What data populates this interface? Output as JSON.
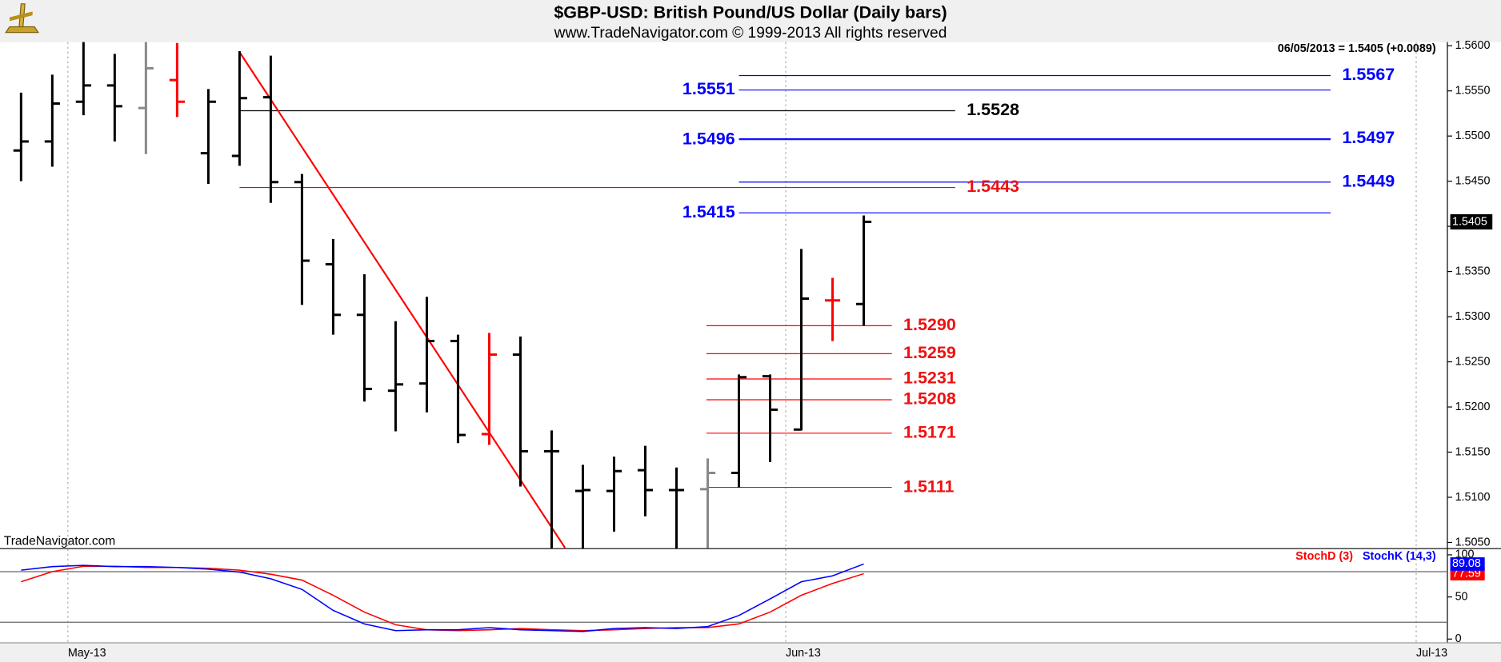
{
  "chart_data": [
    {
      "type": "ohlc",
      "title": "$GBP-USD:  British Pound/US Dollar  (Daily bars)",
      "subtitle": "www.TradeNavigator.com © 1999-2013 All rights reserved",
      "annotation": "06/05/2013 = 1.5405 (+0.0089)",
      "source_label": "TradeNavigator.com",
      "open": [
        1.5484,
        1.5494,
        1.5538,
        1.5556,
        1.5531,
        1.5562,
        1.5481,
        1.5478,
        1.5543,
        1.5449,
        1.5358,
        1.5302,
        1.5218,
        1.5226,
        1.5273,
        1.517,
        1.5258,
        1.5151,
        1.5107,
        1.5107,
        1.513,
        1.5108,
        1.5109,
        1.5127,
        1.5234,
        1.5175,
        1.5318,
        1.5314
      ],
      "high": [
        1.5548,
        1.5568,
        1.5607,
        1.5591,
        1.5607,
        1.5603,
        1.5552,
        1.5594,
        1.5589,
        1.5458,
        1.5386,
        1.5347,
        1.5295,
        1.5322,
        1.528,
        1.5282,
        1.5278,
        1.5174,
        1.5136,
        1.5145,
        1.5157,
        1.5133,
        1.5143,
        1.5236,
        1.5236,
        1.5375,
        1.5343,
        1.5412
      ],
      "low": [
        1.545,
        1.5466,
        1.5523,
        1.5494,
        1.548,
        1.5521,
        1.5447,
        1.5467,
        1.5426,
        1.5313,
        1.528,
        1.5206,
        1.5173,
        1.5194,
        1.516,
        1.5158,
        1.5112,
        1.504,
        1.504,
        1.5062,
        1.5079,
        1.504,
        1.504,
        1.5111,
        1.5139,
        1.5174,
        1.5273,
        1.529
      ],
      "close": [
        1.5494,
        1.5536,
        1.5556,
        1.5533,
        1.5575,
        1.5538,
        1.5538,
        1.5542,
        1.5449,
        1.5362,
        1.5302,
        1.522,
        1.5225,
        1.5273,
        1.5169,
        1.5258,
        1.5151,
        1.5151,
        1.5108,
        1.5129,
        1.5108,
        1.5108,
        1.5127,
        1.5233,
        1.5197,
        1.532,
        1.5318,
        1.5405
      ],
      "colors": [
        "#000000",
        "#000000",
        "#000000",
        "#000000",
        "#888888",
        "#ff0000",
        "#000000",
        "#000000",
        "#000000",
        "#000000",
        "#000000",
        "#000000",
        "#000000",
        "#000000",
        "#000000",
        "#ff0000",
        "#000000",
        "#000000",
        "#000000",
        "#000000",
        "#000000",
        "#000000",
        "#888888",
        "#000000",
        "#000000",
        "#000000",
        "#ff0000",
        "#000000"
      ],
      "ylim": [
        1.50437,
        1.5604
      ],
      "yticks": [
        {
          "value": 1.505,
          "label": "1.5050"
        },
        {
          "value": 1.51,
          "label": "1.5100"
        },
        {
          "value": 1.515,
          "label": "1.5150"
        },
        {
          "value": 1.52,
          "label": "1.5200"
        },
        {
          "value": 1.525,
          "label": "1.5250"
        },
        {
          "value": 1.53,
          "label": "1.5300"
        },
        {
          "value": 1.535,
          "label": "1.5350"
        },
        {
          "value": 1.54,
          "label": "1.5400"
        },
        {
          "value": 1.545,
          "label": "1.5450"
        },
        {
          "value": 1.55,
          "label": "1.5500"
        },
        {
          "value": 1.555,
          "label": "1.5550"
        },
        {
          "value": 1.56,
          "label": "1.5600"
        }
      ],
      "levels": [
        {
          "value": 1.5567,
          "label": "1.5567",
          "color": "#0000ff",
          "side": "right"
        },
        {
          "value": 1.5551,
          "label": "1.5551",
          "color": "#0000ff",
          "side": "left"
        },
        {
          "value": 1.5528,
          "label": "1.5528",
          "color": "#000000",
          "side": "right"
        },
        {
          "value": 1.5497,
          "label": "1.5497",
          "color": "#0000ff",
          "side": "right"
        },
        {
          "value": 1.5496,
          "label": "1.5496",
          "color": "#0000ff",
          "side": "left"
        },
        {
          "value": 1.5449,
          "label": "1.5449",
          "color": "#0000ff",
          "side": "right"
        },
        {
          "value": 1.5443,
          "label": "1.5443",
          "color": "#ff0000",
          "side": "right"
        },
        {
          "value": 1.5415,
          "label": "1.5415",
          "color": "#0000ff",
          "side": "left"
        },
        {
          "value": 1.529,
          "label": "1.5290",
          "color": "#ff0000",
          "side": "right"
        },
        {
          "value": 1.5259,
          "label": "1.5259",
          "color": "#ff0000",
          "side": "right"
        },
        {
          "value": 1.5231,
          "label": "1.5231",
          "color": "#ff0000",
          "side": "right"
        },
        {
          "value": 1.5208,
          "label": "1.5208",
          "color": "#ff0000",
          "side": "right"
        },
        {
          "value": 1.5171,
          "label": "1.5171",
          "color": "#ff0000",
          "side": "right"
        },
        {
          "value": 1.5111,
          "label": "1.5111",
          "color": "#ff0000",
          "side": "right"
        }
      ],
      "trendline": {
        "x": [
          7,
          17.43
        ],
        "y": [
          1.5593,
          1.5044
        ],
        "color": "#ff0000"
      }
    },
    {
      "type": "line",
      "xlim": [
        -0.675,
        45.7
      ],
      "xticks": [
        {
          "value": 1.5,
          "label": "May-13"
        },
        {
          "value": 24.5,
          "label": "Jun-13"
        },
        {
          "value": 44.7,
          "label": "Jul-13"
        }
      ],
      "ylim": [
        -4.5,
        106.8
      ],
      "yticks": [
        0,
        50,
        100
      ],
      "levels": [
        20,
        80
      ],
      "series": [
        {
          "name": "StochD (3)",
          "color": "#ff0000",
          "values": [
            68,
            80,
            86.4,
            86.4,
            85,
            85,
            84,
            81.8,
            77,
            70,
            52,
            32,
            17,
            11,
            10,
            11,
            12.5,
            11,
            10,
            11,
            12.5,
            13.6,
            13.6,
            18,
            32,
            52,
            66,
            77.59
          ]
        },
        {
          "name": "StochK (14,3)",
          "color": "#0000ff",
          "values": [
            81.8,
            86,
            87.5,
            86,
            86,
            85,
            83,
            79.5,
            71.6,
            59,
            34,
            18,
            10,
            11,
            11,
            13.6,
            11,
            10,
            9,
            12.5,
            13.6,
            12.5,
            14.8,
            28,
            47.7,
            68,
            75,
            89.08
          ]
        }
      ]
    }
  ]
}
